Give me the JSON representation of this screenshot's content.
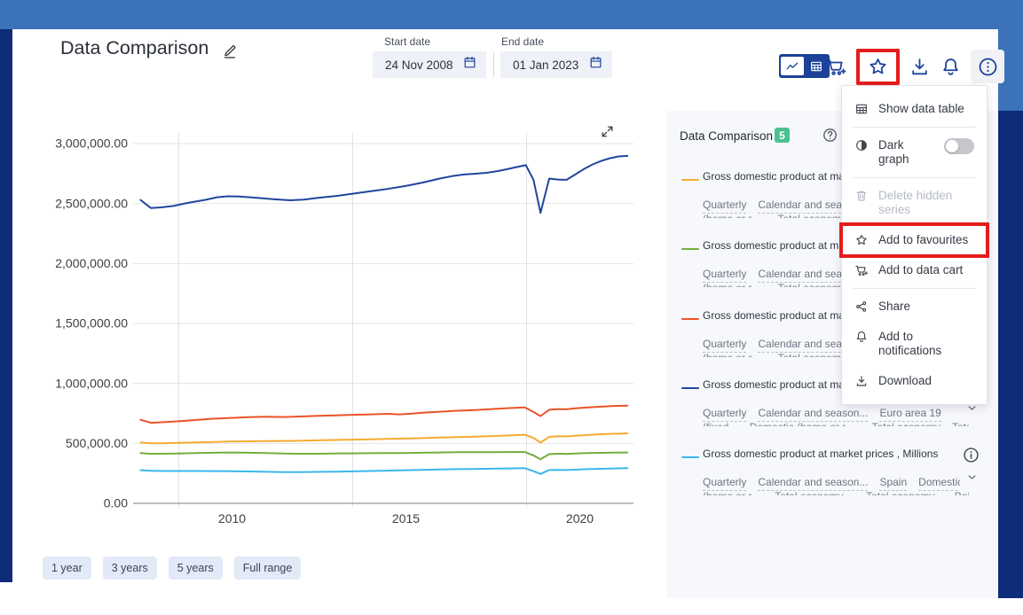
{
  "header": {
    "title": "Data Comparison",
    "start_date": {
      "label": "Start date",
      "value": "24 Nov 2008"
    },
    "end_date": {
      "label": "End date",
      "value": "01 Jan 2023"
    }
  },
  "toolbar": {
    "view_toggle": {
      "selected": "chart",
      "options": [
        "chart",
        "table"
      ]
    },
    "buttons": [
      {
        "id": "add-to-data-cart",
        "icon": "cart-plus"
      },
      {
        "id": "add-to-favourites",
        "icon": "star",
        "highlighted": true
      },
      {
        "id": "download",
        "icon": "download"
      },
      {
        "id": "notifications",
        "icon": "bell"
      },
      {
        "id": "more-options",
        "icon": "kebab-circle",
        "active": true
      }
    ]
  },
  "menu": {
    "items": [
      {
        "id": "show-data-table",
        "label": "Show data table",
        "icon": "table",
        "divider_after": true
      },
      {
        "id": "dark-graph",
        "label": "Dark graph",
        "icon": "contrast",
        "toggle": "off",
        "divider_after": true
      },
      {
        "id": "delete-hidden-series",
        "label": "Delete hidden series",
        "icon": "trash",
        "disabled": true
      },
      {
        "id": "add-to-favourites",
        "label": "Add to favourites",
        "icon": "star",
        "highlighted": true
      },
      {
        "id": "add-to-data-cart",
        "label": "Add to data cart",
        "icon": "cart-plus",
        "divider_after": true
      },
      {
        "id": "share",
        "label": "Share",
        "icon": "share"
      },
      {
        "id": "add-to-notifications",
        "label": "Add to notifications",
        "icon": "bell"
      },
      {
        "id": "download",
        "label": "Download",
        "icon": "download"
      }
    ]
  },
  "panel": {
    "title": "Data Comparison",
    "badge": "5",
    "series": [
      {
        "color": "#f6ab32",
        "title": "Gross domestic product at market prices , Millions",
        "tags": [
          "Quarterly",
          "Calendar and season..."
        ],
        "clipped": "(home or r...      Total economy..."
      },
      {
        "color": "#74ac3e",
        "title": "Gross domestic product at market prices , Millions",
        "tags": [
          "Quarterly",
          "Calendar and season..."
        ],
        "clipped": "(home or r...      Total economy..."
      },
      {
        "color": "#eb5328",
        "title": "Gross domestic product at market prices , Millions",
        "tags": [
          "Quarterly",
          "Calendar and season..."
        ],
        "clipped": "(home or r...      Total economy..."
      },
      {
        "color": "#21459e",
        "title": "Gross domestic product at market prices , Millions",
        "tags": [
          "Quarterly",
          "Calendar and season...",
          "Euro area 19"
        ],
        "clipped": "(fixed       Domestic (home or r...      Total economy    Total..."
      },
      {
        "color": "#3ab7ec",
        "title": "Gross domestic product at market prices , Millions",
        "tags": [
          "Quarterly",
          "Calendar and season...",
          "Spain",
          "Domestic"
        ],
        "clipped": "(home or r...     Total economy...     Total economy...    Balance..."
      }
    ]
  },
  "chart_data": {
    "type": "line",
    "title": "",
    "grid": true,
    "legend_position": "right-panel",
    "x_axis": {
      "ticks": [
        2010,
        2015,
        2020
      ],
      "tick_labels": [
        "2010",
        "2015",
        "2020"
      ],
      "range_years": [
        2008.9,
        2023.0
      ]
    },
    "y_axis": {
      "ticks": [
        0,
        500000,
        1000000,
        1500000,
        2000000,
        2500000,
        3000000
      ],
      "tick_labels": [
        "0.00",
        "500,000.00",
        "1,000,000.00",
        "1,500,000.00",
        "2,000,000.00",
        "2,500,000.00",
        "3,000,000.00"
      ],
      "range": [
        0,
        3100000
      ]
    },
    "series": [
      {
        "name": "Gross domestic product at market prices , Millions (amber)",
        "color": "#f6ab32",
        "points": [
          [
            2008.9,
            507000
          ],
          [
            2009.2,
            500000
          ],
          [
            2009.5,
            501000
          ],
          [
            2010,
            504000
          ],
          [
            2010.5,
            508000
          ],
          [
            2011,
            512000
          ],
          [
            2011.5,
            515000
          ],
          [
            2012,
            517000
          ],
          [
            2012.5,
            519000
          ],
          [
            2013,
            520000
          ],
          [
            2013.5,
            522000
          ],
          [
            2014,
            525000
          ],
          [
            2014.5,
            528000
          ],
          [
            2015,
            531000
          ],
          [
            2015.5,
            534000
          ],
          [
            2016,
            537000
          ],
          [
            2016.5,
            540000
          ],
          [
            2017,
            544000
          ],
          [
            2017.5,
            548000
          ],
          [
            2018,
            552000
          ],
          [
            2018.5,
            556000
          ],
          [
            2019,
            561000
          ],
          [
            2019.5,
            566000
          ],
          [
            2019.95,
            572000
          ],
          [
            2020.2,
            545000
          ],
          [
            2020.4,
            506000
          ],
          [
            2020.65,
            554000
          ],
          [
            2020.9,
            560000
          ],
          [
            2021.15,
            558000
          ],
          [
            2021.4,
            563000
          ],
          [
            2021.75,
            570000
          ],
          [
            2022.15,
            576000
          ],
          [
            2022.5,
            580000
          ],
          [
            2022.9,
            583000
          ]
        ]
      },
      {
        "name": "Gross domestic product at market prices , Millions (green)",
        "color": "#74ac3e",
        "points": [
          [
            2008.9,
            420000
          ],
          [
            2009.2,
            413000
          ],
          [
            2009.5,
            414000
          ],
          [
            2010,
            416000
          ],
          [
            2010.5,
            419000
          ],
          [
            2011,
            422000
          ],
          [
            2011.5,
            424000
          ],
          [
            2012,
            422000
          ],
          [
            2012.5,
            419000
          ],
          [
            2013,
            415000
          ],
          [
            2013.5,
            413000
          ],
          [
            2014,
            414000
          ],
          [
            2014.5,
            416000
          ],
          [
            2015,
            417000
          ],
          [
            2015.5,
            418000
          ],
          [
            2016,
            419000
          ],
          [
            2016.5,
            420000
          ],
          [
            2017,
            422000
          ],
          [
            2017.5,
            424000
          ],
          [
            2018,
            426000
          ],
          [
            2018.5,
            427000
          ],
          [
            2019,
            427000
          ],
          [
            2019.5,
            428000
          ],
          [
            2019.95,
            428000
          ],
          [
            2020.2,
            400000
          ],
          [
            2020.4,
            368000
          ],
          [
            2020.65,
            410000
          ],
          [
            2020.9,
            414000
          ],
          [
            2021.15,
            412000
          ],
          [
            2021.4,
            416000
          ],
          [
            2021.75,
            419000
          ],
          [
            2022.15,
            421000
          ],
          [
            2022.5,
            423000
          ],
          [
            2022.9,
            424000
          ]
        ]
      },
      {
        "name": "Gross domestic product at market prices , Millions (orange-red)",
        "color": "#eb5328",
        "points": [
          [
            2008.9,
            697000
          ],
          [
            2009.2,
            672000
          ],
          [
            2009.5,
            676000
          ],
          [
            2010,
            684000
          ],
          [
            2010.5,
            695000
          ],
          [
            2011,
            706000
          ],
          [
            2011.5,
            712000
          ],
          [
            2012,
            718000
          ],
          [
            2012.5,
            722000
          ],
          [
            2013,
            720000
          ],
          [
            2013.5,
            724000
          ],
          [
            2014,
            730000
          ],
          [
            2014.5,
            734000
          ],
          [
            2015,
            738000
          ],
          [
            2015.5,
            742000
          ],
          [
            2016,
            746000
          ],
          [
            2016.35,
            742000
          ],
          [
            2016.7,
            748000
          ],
          [
            2017,
            756000
          ],
          [
            2017.5,
            764000
          ],
          [
            2018,
            772000
          ],
          [
            2018.5,
            778000
          ],
          [
            2019,
            786000
          ],
          [
            2019.5,
            794000
          ],
          [
            2019.95,
            800000
          ],
          [
            2020.2,
            762000
          ],
          [
            2020.4,
            728000
          ],
          [
            2020.65,
            780000
          ],
          [
            2020.9,
            786000
          ],
          [
            2021.15,
            784000
          ],
          [
            2021.4,
            792000
          ],
          [
            2021.75,
            800000
          ],
          [
            2022.15,
            806000
          ],
          [
            2022.5,
            812000
          ],
          [
            2022.9,
            815000
          ]
        ]
      },
      {
        "name": "Gross domestic product at market prices , Millions - Euro area 19",
        "color": "#21459e",
        "points": [
          [
            2008.9,
            2530000
          ],
          [
            2009.2,
            2462000
          ],
          [
            2009.5,
            2468000
          ],
          [
            2009.85,
            2480000
          ],
          [
            2010.25,
            2505000
          ],
          [
            2010.75,
            2530000
          ],
          [
            2011.1,
            2552000
          ],
          [
            2011.4,
            2560000
          ],
          [
            2011.75,
            2558000
          ],
          [
            2012.25,
            2548000
          ],
          [
            2012.75,
            2535000
          ],
          [
            2013.2,
            2527000
          ],
          [
            2013.6,
            2532000
          ],
          [
            2014,
            2548000
          ],
          [
            2014.5,
            2562000
          ],
          [
            2015,
            2582000
          ],
          [
            2015.5,
            2602000
          ],
          [
            2016,
            2622000
          ],
          [
            2016.5,
            2645000
          ],
          [
            2017,
            2674000
          ],
          [
            2017.5,
            2708000
          ],
          [
            2017.85,
            2728000
          ],
          [
            2018.2,
            2742000
          ],
          [
            2018.5,
            2748000
          ],
          [
            2018.85,
            2756000
          ],
          [
            2019.2,
            2772000
          ],
          [
            2019.5,
            2790000
          ],
          [
            2019.85,
            2812000
          ],
          [
            2019.98,
            2820000
          ],
          [
            2020.2,
            2698000
          ],
          [
            2020.4,
            2422000
          ],
          [
            2020.65,
            2708000
          ],
          [
            2020.9,
            2700000
          ],
          [
            2021.15,
            2698000
          ],
          [
            2021.4,
            2742000
          ],
          [
            2021.65,
            2788000
          ],
          [
            2021.9,
            2826000
          ],
          [
            2022.15,
            2855000
          ],
          [
            2022.4,
            2878000
          ],
          [
            2022.65,
            2893000
          ],
          [
            2022.9,
            2897000
          ]
        ]
      },
      {
        "name": "Gross domestic product at market prices , Millions - Spain",
        "color": "#3ab7ec",
        "points": [
          [
            2008.9,
            276000
          ],
          [
            2009.2,
            271000
          ],
          [
            2009.5,
            270000
          ],
          [
            2010,
            270000
          ],
          [
            2010.5,
            270000
          ],
          [
            2011,
            269000
          ],
          [
            2011.5,
            268000
          ],
          [
            2012,
            266000
          ],
          [
            2012.5,
            263000
          ],
          [
            2013,
            261000
          ],
          [
            2013.5,
            261000
          ],
          [
            2014,
            262000
          ],
          [
            2014.5,
            264000
          ],
          [
            2015,
            267000
          ],
          [
            2015.5,
            270000
          ],
          [
            2016,
            273000
          ],
          [
            2016.5,
            276000
          ],
          [
            2017,
            279000
          ],
          [
            2017.5,
            282000
          ],
          [
            2018,
            285000
          ],
          [
            2018.5,
            287000
          ],
          [
            2019,
            289000
          ],
          [
            2019.5,
            291000
          ],
          [
            2019.95,
            293000
          ],
          [
            2020.2,
            268000
          ],
          [
            2020.4,
            245000
          ],
          [
            2020.65,
            278000
          ],
          [
            2020.9,
            279000
          ],
          [
            2021.15,
            278000
          ],
          [
            2021.4,
            281000
          ],
          [
            2021.75,
            285000
          ],
          [
            2022.15,
            288000
          ],
          [
            2022.5,
            291000
          ],
          [
            2022.9,
            293000
          ]
        ]
      }
    ]
  },
  "range_buttons": [
    "1 year",
    "3 years",
    "5 years",
    "Full range"
  ],
  "colors": {
    "banner_blue": "#3c72b8",
    "frame_navy": "#0d2d78",
    "accent_blue": "#1b4298",
    "badge_green": "#4bc08f",
    "highlight_red": "#e41c1c",
    "panel_bg": "#f7f8fc",
    "input_bg": "#eef1f7",
    "pill_bg": "#e3e9f6"
  }
}
